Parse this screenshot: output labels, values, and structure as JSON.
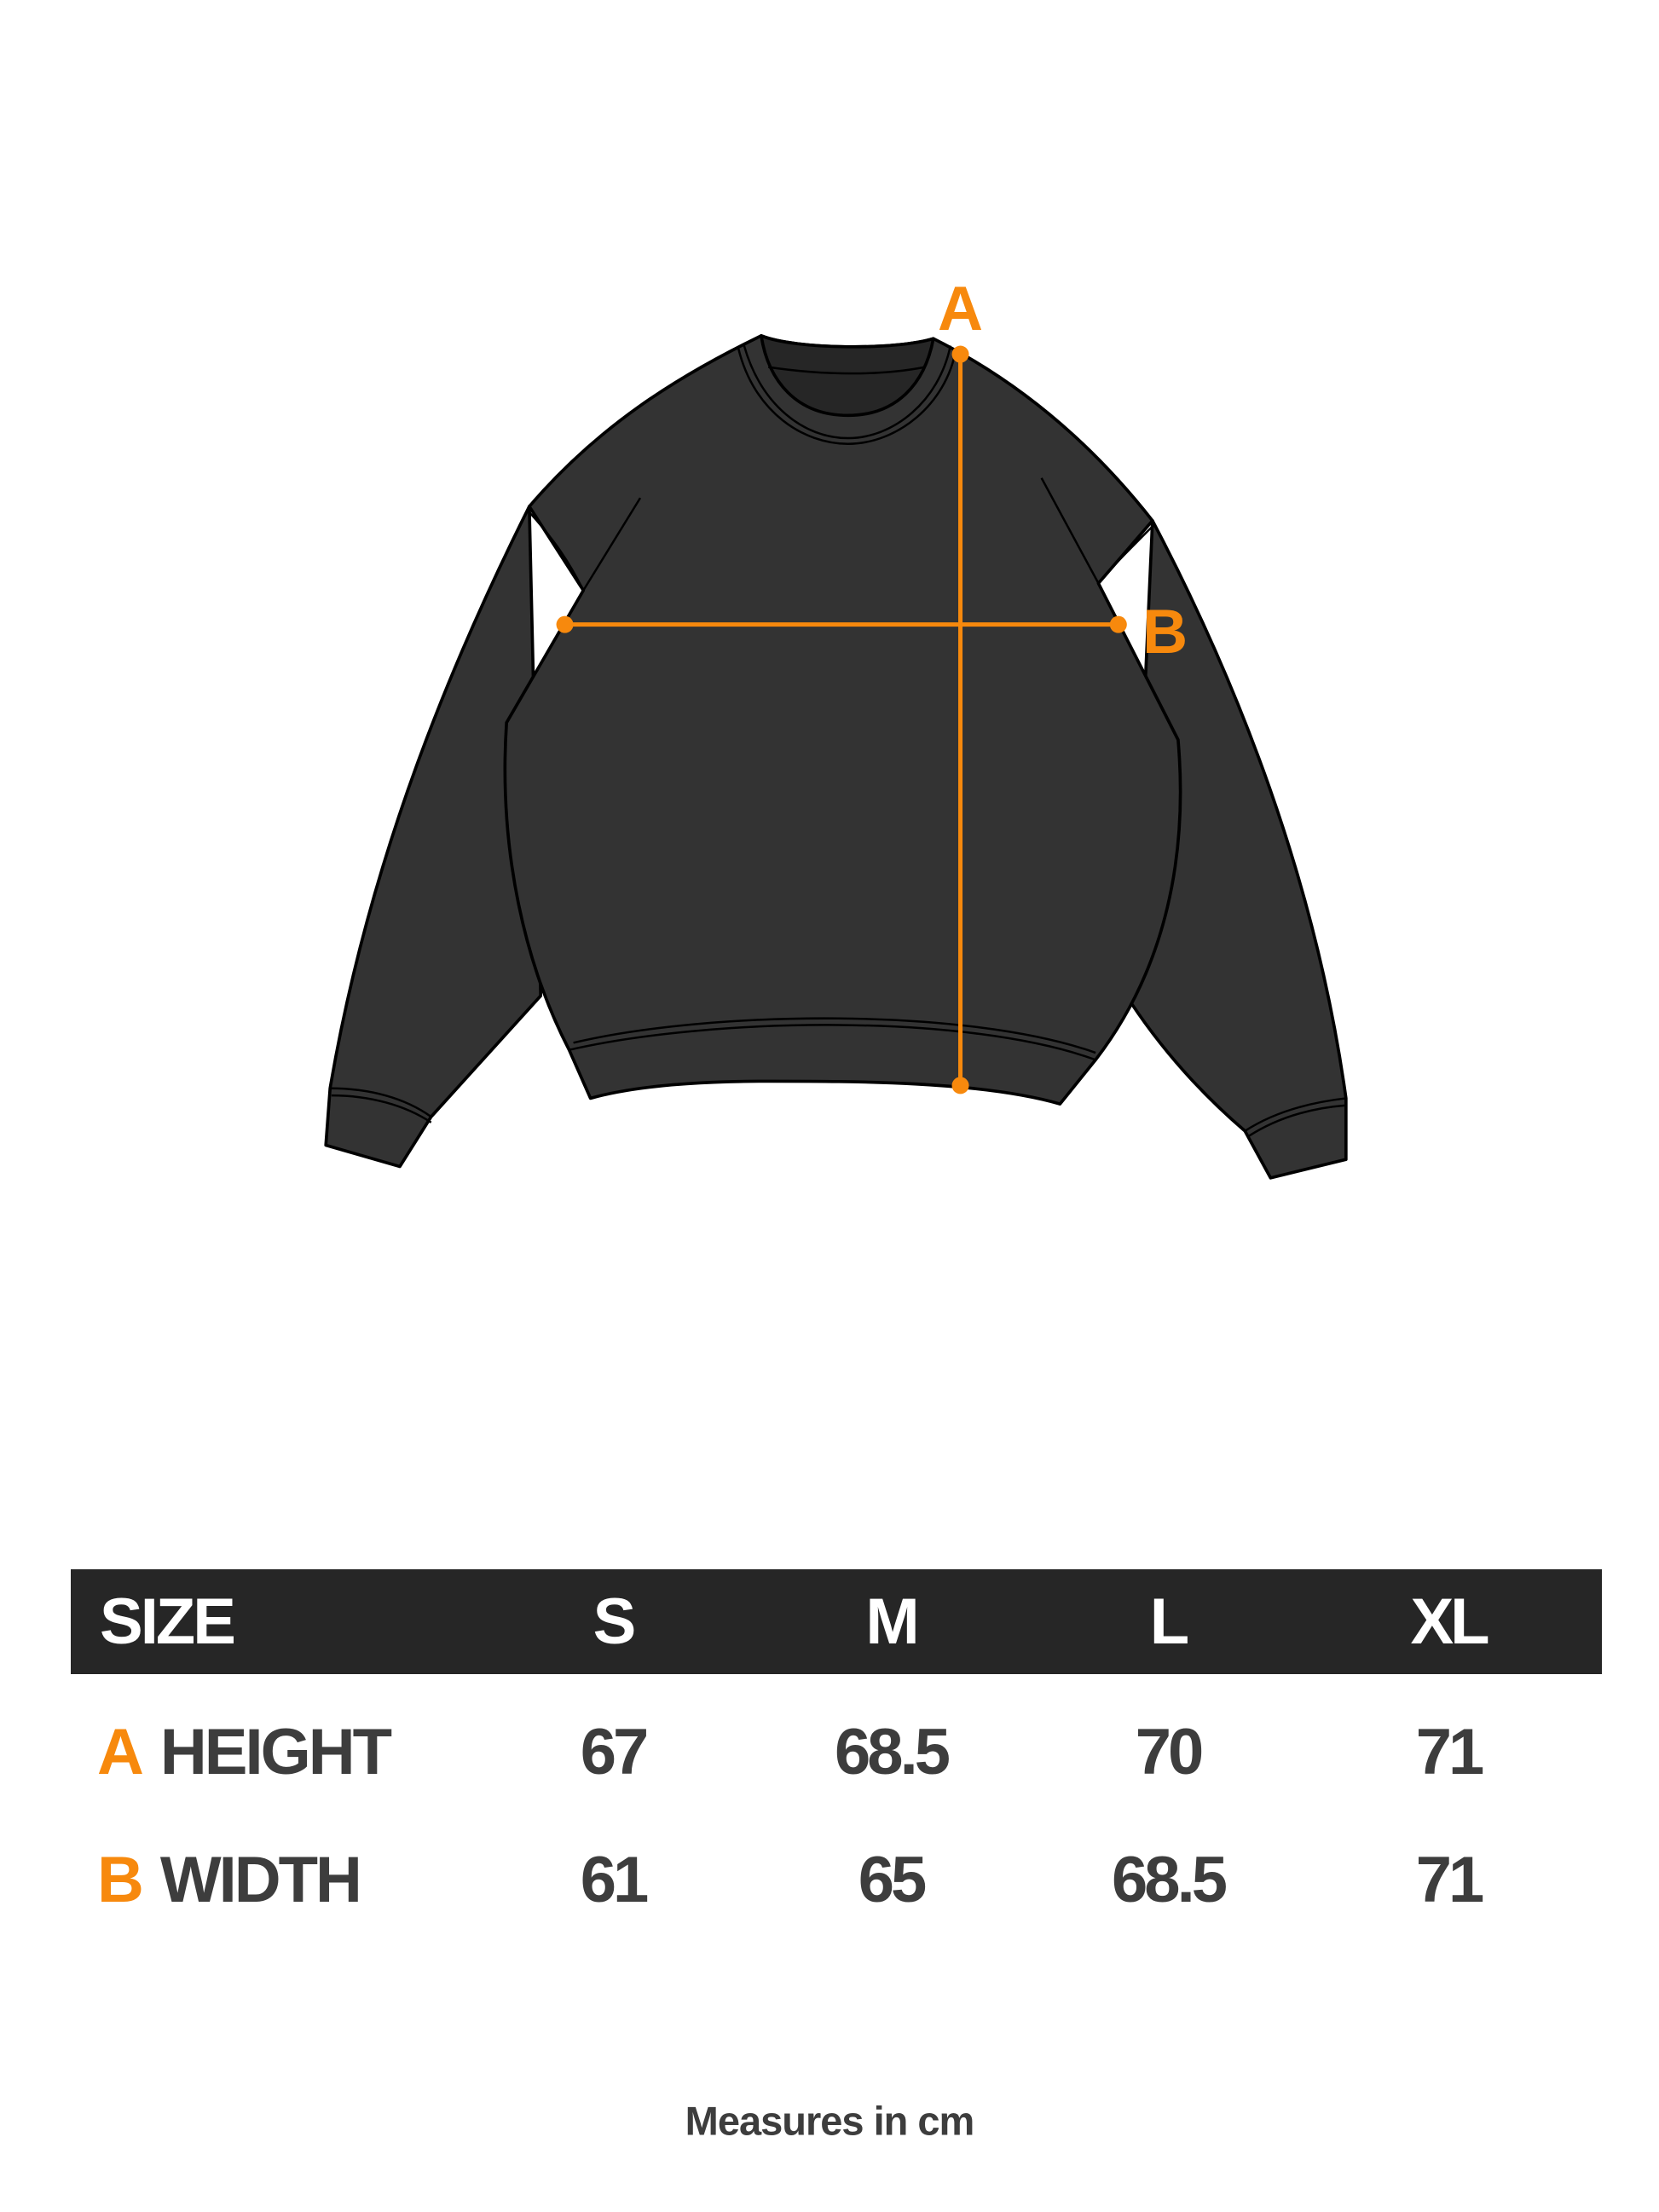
{
  "colors": {
    "accent": "#f7890d",
    "garment": "#333333",
    "header_bg": "#262626",
    "text": "#3d3d3d"
  },
  "diagram": {
    "label_a": "A",
    "label_b": "B"
  },
  "table": {
    "header": {
      "size_label": "SIZE",
      "sizes": [
        "S",
        "M",
        "L",
        "XL"
      ]
    },
    "rows": [
      {
        "letter": "A",
        "label": "HEIGHT",
        "values": [
          "67",
          "68.5",
          "70",
          "71"
        ]
      },
      {
        "letter": "B",
        "label": "WIDTH",
        "values": [
          "61",
          "65",
          "68.5",
          "71"
        ]
      }
    ]
  },
  "footer": "Measures in cm"
}
